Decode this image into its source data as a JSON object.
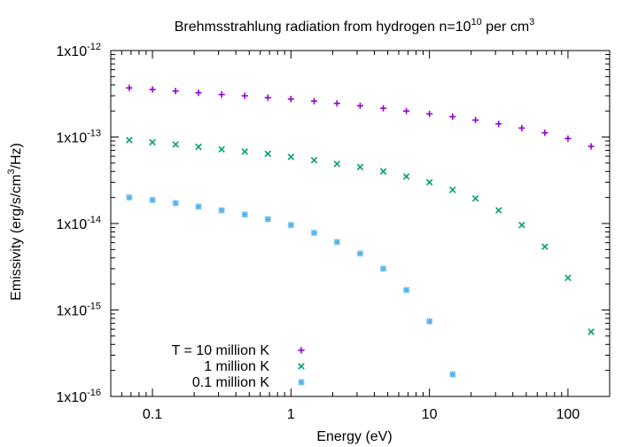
{
  "chart_data": {
    "type": "scatter",
    "title": {
      "base": "Brehmsstrahlung radiation from hydrogen n=10",
      "exp": "10",
      "tail": " per cm",
      "tail_exp": "3"
    },
    "xlabel": "Energy (eV)",
    "ylabel": {
      "base": "Emissivity (erg/s/cm",
      "exp": "3",
      "tail": "/Hz)"
    },
    "xscale": "log",
    "yscale": "log",
    "xlim": [
      0.05,
      200
    ],
    "ylim": [
      1e-16,
      1e-12
    ],
    "x_ticks": [
      {
        "value": 0.1,
        "label": "0.1"
      },
      {
        "value": 1,
        "label": "1"
      },
      {
        "value": 10,
        "label": "10"
      },
      {
        "value": 100,
        "label": "100"
      }
    ],
    "y_ticks": [
      {
        "value": 1e-16,
        "base": "1x10",
        "exp": "-16"
      },
      {
        "value": 1e-15,
        "base": "1x10",
        "exp": "-15"
      },
      {
        "value": 1e-14,
        "base": "1x10",
        "exp": "-14"
      },
      {
        "value": 1e-13,
        "base": "1x10",
        "exp": "-13"
      },
      {
        "value": 1e-12,
        "base": "1x10",
        "exp": "-12"
      }
    ],
    "grid": false,
    "legend_position": "bottom-left",
    "series": [
      {
        "name": "T = 10 million K",
        "color": "#9400d3",
        "marker": "plus",
        "points": [
          [
            0.068,
            3.7e-13
          ],
          [
            0.1,
            3.55e-13
          ],
          [
            0.147,
            3.4e-13
          ],
          [
            0.215,
            3.25e-13
          ],
          [
            0.316,
            3.1e-13
          ],
          [
            0.464,
            3e-13
          ],
          [
            0.681,
            2.85e-13
          ],
          [
            1.0,
            2.75e-13
          ],
          [
            1.47,
            2.6e-13
          ],
          [
            2.15,
            2.45e-13
          ],
          [
            3.16,
            2.3e-13
          ],
          [
            4.64,
            2.15e-13
          ],
          [
            6.81,
            2e-13
          ],
          [
            10.0,
            1.85e-13
          ],
          [
            14.7,
            1.72e-13
          ],
          [
            21.5,
            1.57e-13
          ],
          [
            31.6,
            1.42e-13
          ],
          [
            46.4,
            1.27e-13
          ],
          [
            68.1,
            1.12e-13
          ],
          [
            100,
            9.6e-14
          ],
          [
            147,
            7.8e-14
          ]
        ]
      },
      {
        "name": "1 million K",
        "color": "#009e73",
        "marker": "cross",
        "points": [
          [
            0.068,
            9.2e-14
          ],
          [
            0.1,
            8.7e-14
          ],
          [
            0.147,
            8.2e-14
          ],
          [
            0.215,
            7.7e-14
          ],
          [
            0.316,
            7.2e-14
          ],
          [
            0.464,
            6.8e-14
          ],
          [
            0.681,
            6.4e-14
          ],
          [
            1.0,
            5.9e-14
          ],
          [
            1.47,
            5.4e-14
          ],
          [
            2.15,
            4.9e-14
          ],
          [
            3.16,
            4.5e-14
          ],
          [
            4.64,
            4e-14
          ],
          [
            6.81,
            3.5e-14
          ],
          [
            10.0,
            3e-14
          ],
          [
            14.7,
            2.45e-14
          ],
          [
            21.5,
            1.95e-14
          ],
          [
            31.6,
            1.42e-14
          ],
          [
            46.4,
            9.6e-15
          ],
          [
            68.1,
            5.4e-15
          ],
          [
            100,
            2.35e-15
          ],
          [
            147,
            5.6e-16
          ]
        ]
      },
      {
        "name": "0.1 million K",
        "color": "#56b4e9",
        "marker": "star",
        "points": [
          [
            0.068,
            2e-14
          ],
          [
            0.1,
            1.87e-14
          ],
          [
            0.147,
            1.72e-14
          ],
          [
            0.215,
            1.57e-14
          ],
          [
            0.316,
            1.42e-14
          ],
          [
            0.464,
            1.27e-14
          ],
          [
            0.681,
            1.12e-14
          ],
          [
            1.0,
            9.6e-15
          ],
          [
            1.47,
            7.8e-15
          ],
          [
            2.15,
            6.1e-15
          ],
          [
            3.16,
            4.5e-15
          ],
          [
            4.64,
            3e-15
          ],
          [
            6.81,
            1.7e-15
          ],
          [
            10.0,
            7.4e-16
          ],
          [
            14.7,
            1.8e-16
          ]
        ]
      }
    ]
  }
}
